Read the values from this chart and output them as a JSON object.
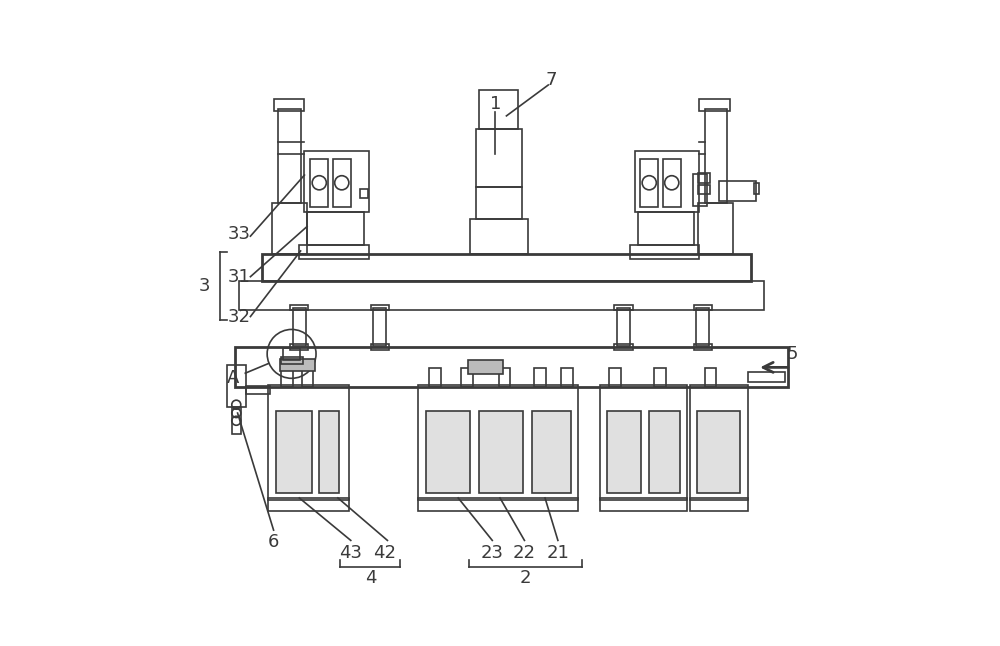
{
  "bg_color": "#ffffff",
  "line_color": "#3a3a3a",
  "line_width": 1.2,
  "thick_line": 2.0,
  "fig_width": 10.0,
  "fig_height": 6.46,
  "font_size": 13
}
